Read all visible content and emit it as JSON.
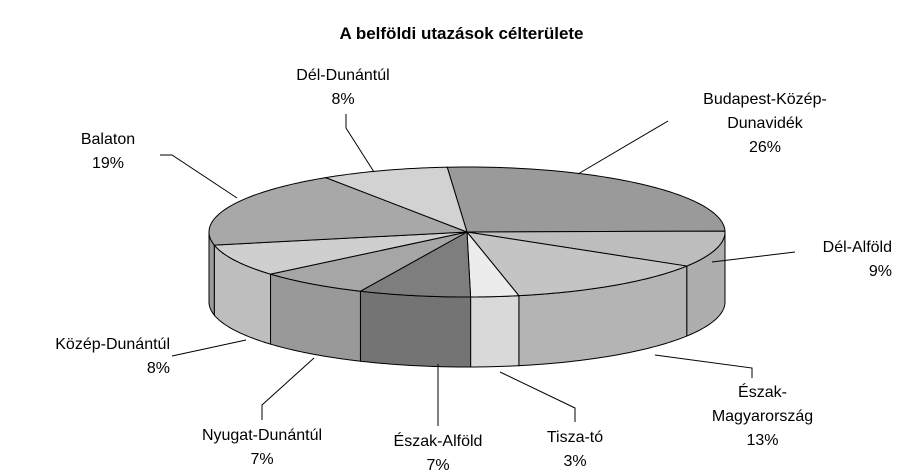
{
  "chart_data": {
    "type": "pie3d",
    "title": "A belföldi utazások célterülete",
    "categories": [
      "Budapest-Közép-Dunavidék",
      "Dél-Alföld",
      "Észak-Magyarország",
      "Tisza-tó",
      "Észak-Alföld",
      "Nyugat-Dunántúl",
      "Közép-Dunántúl",
      "Balaton",
      "Dél-Dunántúl"
    ],
    "values": [
      26,
      9,
      13,
      3,
      7,
      7,
      8,
      19,
      8
    ],
    "value_labels": [
      "26%",
      "9%",
      "13%",
      "3%",
      "7%",
      "7%",
      "8%",
      "19%",
      "8%"
    ],
    "colors": [
      "#9a9a9a",
      "#bdbdbd",
      "#c4c4c4",
      "#ececec",
      "#7e7e7e",
      "#a6a6a6",
      "#cfcfcf",
      "#a8a8a8",
      "#d2d2d2"
    ]
  }
}
